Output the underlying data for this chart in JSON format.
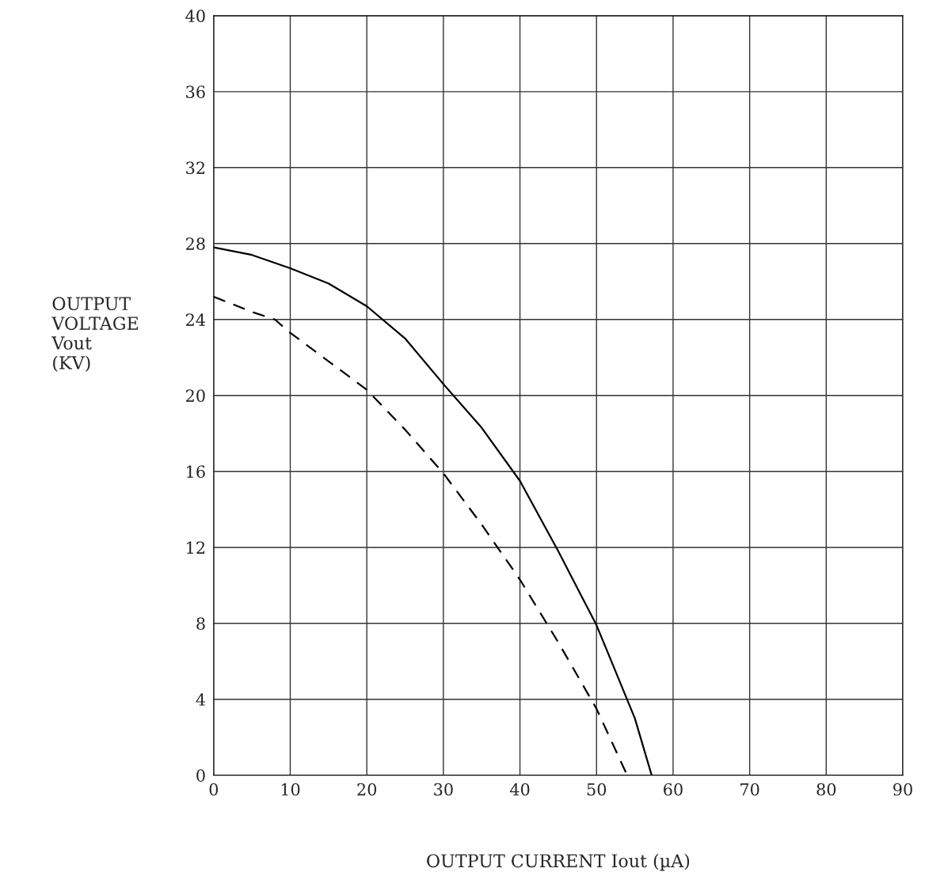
{
  "chart_data": {
    "type": "line",
    "xlabel": "OUTPUT CURRENT Iout (µA)",
    "ylabel": "OUTPUT\nVOLTAGE\nVout\n(KV)",
    "xlim": [
      0,
      90
    ],
    "ylim": [
      0,
      40
    ],
    "xticks": [
      0,
      10,
      20,
      30,
      40,
      50,
      60,
      70,
      80,
      90
    ],
    "yticks": [
      0,
      4,
      8,
      12,
      16,
      20,
      24,
      28,
      32,
      36,
      40
    ],
    "grid": true,
    "series": [
      {
        "color": "#000000",
        "line_style": "solid",
        "x": [
          0,
          5,
          10,
          15,
          20,
          25,
          30,
          35,
          40,
          45,
          50,
          55,
          57.2
        ],
        "values": [
          27.8,
          27.4,
          26.7,
          25.9,
          24.7,
          23.0,
          20.6,
          18.3,
          15.5,
          11.8,
          7.9,
          3.0,
          0
        ]
      },
      {
        "color": "#000000",
        "line_style": "dashed",
        "x": [
          0,
          5,
          8,
          10,
          15,
          20,
          25,
          30,
          35,
          40,
          45,
          50,
          54
        ],
        "values": [
          25.2,
          24.4,
          24,
          23.3,
          21.8,
          20.3,
          18.2,
          15.9,
          13.2,
          10.3,
          7.0,
          3.5,
          0
        ]
      }
    ]
  }
}
